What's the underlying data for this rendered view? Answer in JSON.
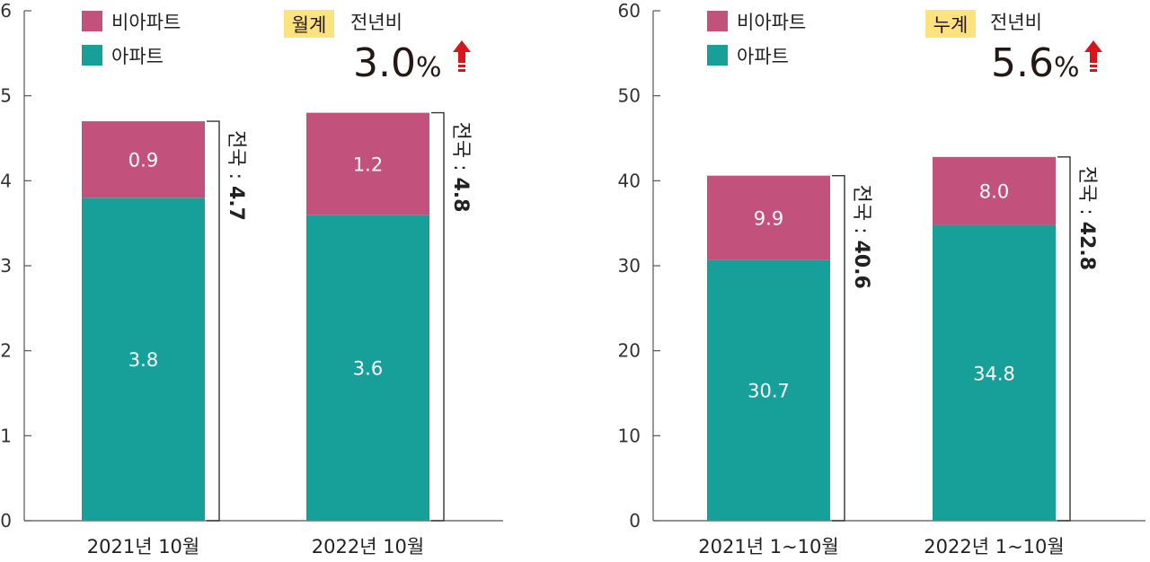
{
  "colors": {
    "apartment": "#17a09a",
    "non_apartment": "#c2527b",
    "badge": "#fde27e",
    "arrow": "#d7151b",
    "axis": "#555555"
  },
  "chart_data": [
    {
      "type": "bar",
      "stacked": true,
      "categories": [
        "2021년 10월",
        "2022년 10월"
      ],
      "series": [
        {
          "name": "아파트",
          "values": [
            3.8,
            3.6
          ]
        },
        {
          "name": "비아파트",
          "values": [
            0.9,
            1.2
          ]
        }
      ],
      "segment_labels": {
        "아파트": [
          "3.8",
          "3.6"
        ],
        "비아파트": [
          "0.9",
          "1.2"
        ]
      },
      "totals": [
        {
          "prefix": "전국 : ",
          "value": "4.7"
        },
        {
          "prefix": "전국 : ",
          "value": "4.8"
        }
      ],
      "total_values": [
        4.7,
        4.8
      ],
      "ylim": [
        0,
        6
      ],
      "yticks": [
        "0",
        "1",
        "2",
        "3",
        "4",
        "5",
        "6"
      ],
      "legend": [
        "비아파트",
        "아파트"
      ],
      "legend_position": "top-left",
      "header": {
        "badge": "월계",
        "label": "전년비",
        "value": "3.0",
        "unit": "%",
        "direction": "up"
      }
    },
    {
      "type": "bar",
      "stacked": true,
      "categories": [
        "2021년 1~10월",
        "2022년 1~10월"
      ],
      "series": [
        {
          "name": "아파트",
          "values": [
            30.7,
            34.8
          ]
        },
        {
          "name": "비아파트",
          "values": [
            9.9,
            8.0
          ]
        }
      ],
      "segment_labels": {
        "아파트": [
          "30.7",
          "34.8"
        ],
        "비아파트": [
          "9.9",
          "8.0"
        ]
      },
      "totals": [
        {
          "prefix": "전국 : ",
          "value": "40.6"
        },
        {
          "prefix": "전국 : ",
          "value": "42.8"
        }
      ],
      "total_values": [
        40.6,
        42.8
      ],
      "ylim": [
        0,
        60
      ],
      "yticks": [
        "0",
        "10",
        "20",
        "30",
        "40",
        "50",
        "60"
      ],
      "legend": [
        "비아파트",
        "아파트"
      ],
      "legend_position": "top-left",
      "header": {
        "badge": "누계",
        "label": "전년비",
        "value": "5.6",
        "unit": "%",
        "direction": "up"
      }
    }
  ]
}
